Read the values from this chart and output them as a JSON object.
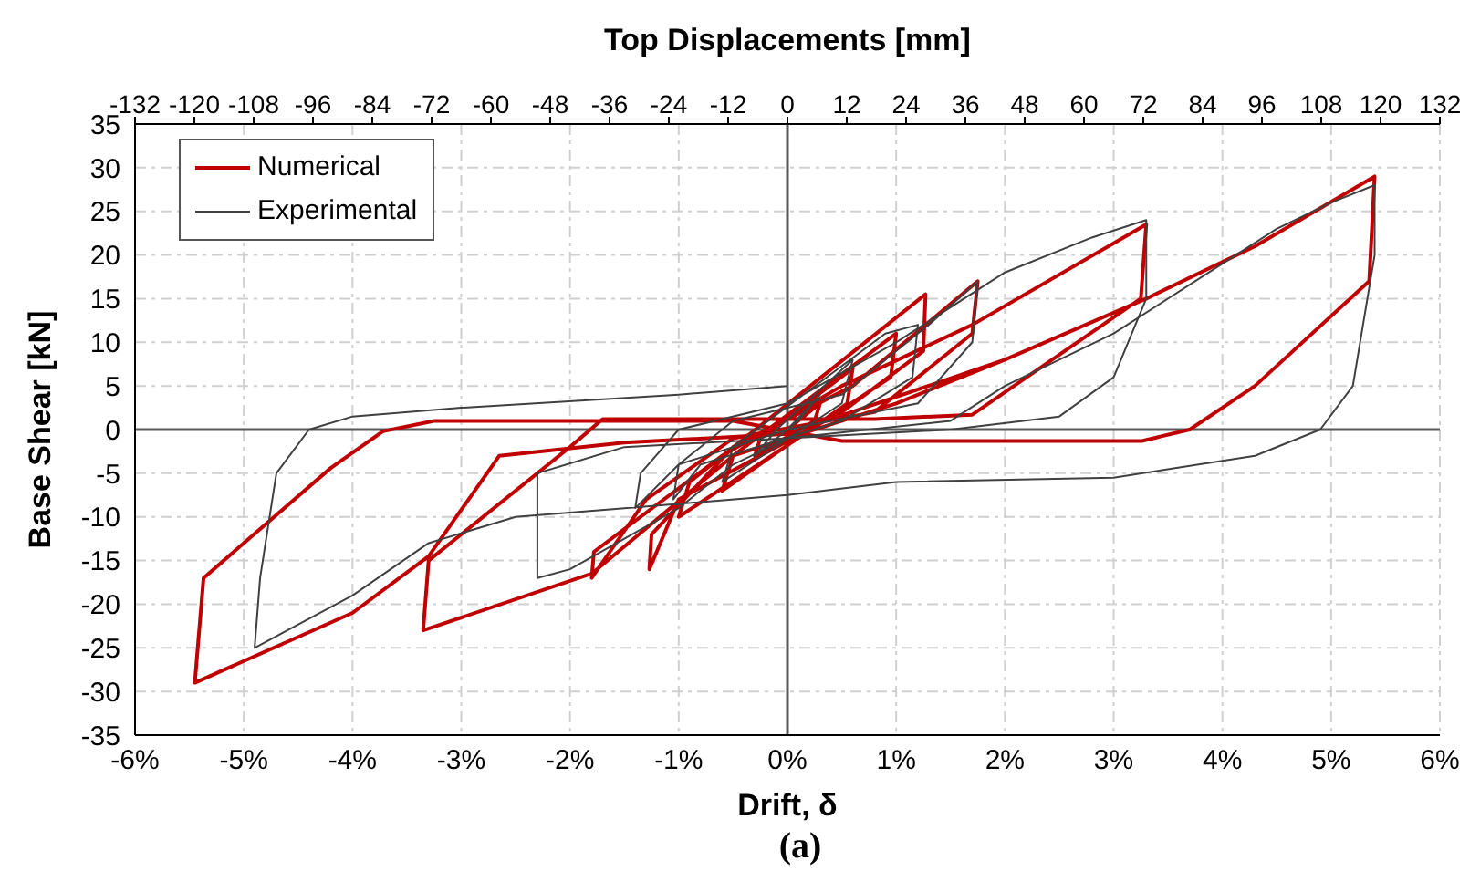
{
  "chart_data": {
    "type": "line",
    "x2label": "Top Displacements [mm]",
    "xlabel": "Drift, δ",
    "ylabel": "Base Shear [kN]",
    "annotations": [
      "(a)"
    ],
    "xlim": [
      -6,
      6
    ],
    "xticks": [
      {
        "value": -6,
        "label": "-6%"
      },
      {
        "value": -5,
        "label": "-5%"
      },
      {
        "value": -4,
        "label": "-4%"
      },
      {
        "value": -3,
        "label": "-3%"
      },
      {
        "value": -2,
        "label": "-2%"
      },
      {
        "value": -1,
        "label": "-1%"
      },
      {
        "value": 0,
        "label": "0%"
      },
      {
        "value": 1,
        "label": "1%"
      },
      {
        "value": 2,
        "label": "2%"
      },
      {
        "value": 3,
        "label": "3%"
      },
      {
        "value": 4,
        "label": "4%"
      },
      {
        "value": 5,
        "label": "5%"
      },
      {
        "value": 6,
        "label": "6%"
      }
    ],
    "x2lim": [
      -132,
      132
    ],
    "x2ticks": [
      -132,
      -120,
      -108,
      -96,
      -84,
      -72,
      -60,
      -48,
      -36,
      -24,
      -12,
      0,
      12,
      24,
      36,
      48,
      60,
      72,
      84,
      96,
      108,
      120,
      132
    ],
    "ylim": [
      -35,
      35
    ],
    "yticks": [
      -35,
      -30,
      -25,
      -20,
      -15,
      -10,
      -5,
      0,
      5,
      10,
      15,
      20,
      25,
      30,
      35
    ],
    "grid": true,
    "legend": "top left",
    "marker": "none",
    "line_style": "solid",
    "series": [
      {
        "name": "Numerical",
        "color": "#c00000",
        "x": [
          0,
          0.3,
          0.25,
          -0.3,
          -0.25,
          0.6,
          0.55,
          -0.6,
          -0.5,
          1.0,
          0.95,
          -1.0,
          -0.9,
          1.27,
          1.25,
          0.5,
          -1.0,
          -1.27,
          -1.25,
          -0.5,
          0.6,
          1.75,
          1.7,
          0.8,
          -0.5,
          -1.3,
          -1.8,
          -1.78,
          -0.6,
          0.5,
          1.7,
          3.3,
          3.25,
          1.7,
          0.8,
          -1.7,
          -2.0,
          -3.3,
          -3.35,
          -1.8,
          -0.5,
          1.0,
          2.0,
          3.3,
          4.3,
          5.4,
          5.35,
          4.3,
          3.7,
          3.26,
          0.5,
          -0.5,
          -3.25,
          -3.72,
          -4.2,
          -5.37,
          -5.45,
          -4.0,
          -3.3,
          -2.65,
          -1.5,
          0,
          2.0,
          3.3
        ],
        "values": [
          0,
          3,
          1,
          -3,
          -1,
          7,
          3,
          -7,
          -3,
          11,
          6,
          -10,
          -6,
          15.5,
          9,
          2,
          -8,
          -16,
          -12,
          -2,
          5,
          17,
          11,
          2,
          -1,
          -8,
          -17,
          -14,
          -3,
          5,
          12,
          23.5,
          15,
          1.7,
          1.2,
          1.2,
          -2,
          -15,
          -23,
          -16.5,
          -3,
          3,
          8,
          15,
          21,
          29,
          17,
          5,
          0,
          -1.3,
          -1.3,
          1,
          1,
          -0.2,
          -4.4,
          -17,
          -29,
          -21,
          -14.5,
          -3,
          -1.5,
          -0.5,
          8,
          15
        ]
      },
      {
        "name": "Experimental",
        "color": "#404040",
        "x": [
          0,
          0.3,
          0.1,
          -0.3,
          -0.1,
          0.6,
          0.5,
          -0.6,
          -0.5,
          0.9,
          1.2,
          1.15,
          0.5,
          -0.8,
          -1.05,
          -1.0,
          -0.5,
          0.5,
          1.3,
          1.75,
          1.7,
          1.2,
          0,
          -1.0,
          -1.4,
          -1.35,
          -1.0,
          0,
          1.0,
          2.0,
          2.8,
          3.3,
          3.3,
          3.0,
          2.5,
          1.5,
          0,
          -1.5,
          -2.3,
          -2.3,
          -2.0,
          -1.0,
          -0.5,
          0,
          1.5,
          2.0,
          3.0,
          4.0,
          4.5,
          5.0,
          5.4,
          5.4,
          5.2,
          4.9,
          4.3,
          3.0,
          1.0,
          0,
          -1.5,
          -2.5,
          -3.3,
          -4.0,
          -4.6,
          -4.9,
          -4.85,
          -4.7,
          -4.4,
          -4.0,
          -3.0,
          -1.0,
          0
        ],
        "values": [
          0,
          4,
          1,
          -3,
          0,
          8,
          3,
          -6,
          -2,
          11,
          12,
          6,
          1,
          -4,
          -8,
          -4,
          1,
          4,
          12,
          17,
          10,
          3,
          0,
          -4,
          -9,
          -5,
          0,
          3,
          10,
          18,
          22,
          24,
          15,
          6,
          1.5,
          0,
          -1,
          -2,
          -5,
          -17,
          -16,
          -9,
          -4,
          -1,
          1,
          5,
          11,
          19,
          23,
          26,
          28,
          20,
          5,
          0,
          -3,
          -5.5,
          -6,
          -7.5,
          -9,
          -10,
          -13,
          -19,
          -23,
          -25,
          -17,
          -5,
          0,
          1.5,
          2.5,
          4,
          5
        ]
      }
    ]
  }
}
